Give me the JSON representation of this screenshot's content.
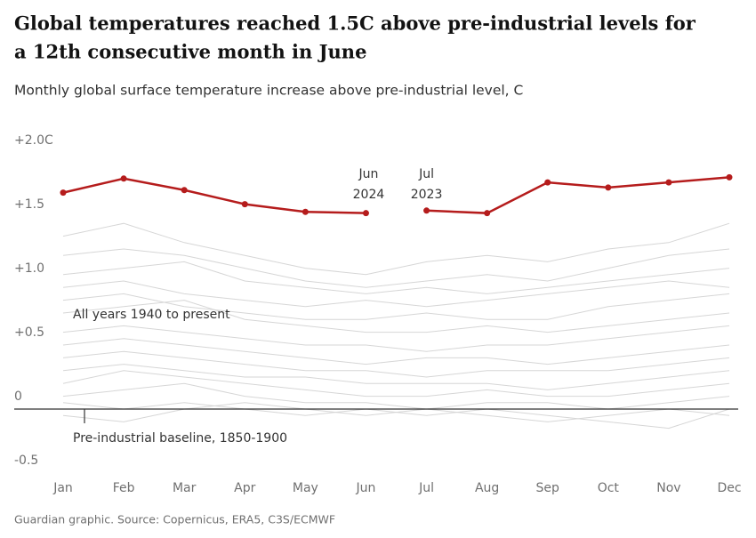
{
  "chart_data": {
    "type": "line",
    "title": [
      "Global temperatures reached 1.5C above pre-industrial levels for",
      "a 12th consecutive month in June"
    ],
    "subtitle": "Monthly global surface temperature increase above pre-industrial level, C",
    "source": "Guardian graphic. Source: Copernicus, ERA5, C3S/ECMWF",
    "categories": [
      "Jan",
      "Feb",
      "Mar",
      "Apr",
      "May",
      "Jun",
      "Jul",
      "Aug",
      "Sep",
      "Oct",
      "Nov",
      "Dec"
    ],
    "ylim": [
      -0.55,
      2.15
    ],
    "yticks": [
      {
        "value": 2.0,
        "label": "+2.0C"
      },
      {
        "value": 1.5,
        "label": "+1.5"
      },
      {
        "value": 1.0,
        "label": "+1.0"
      },
      {
        "value": 0.5,
        "label": "+0.5"
      },
      0,
      -0.5
    ],
    "baseline": 0,
    "series": [
      {
        "color": "#b51c1c",
        "values": [
          1.69,
          1.8,
          1.71,
          1.6,
          1.54,
          1.53,
          null,
          null,
          null,
          null,
          null,
          null
        ]
      },
      {
        "color": "#b51c1c",
        "values": [
          null,
          null,
          null,
          null,
          null,
          null,
          1.55,
          1.53,
          1.77,
          1.73,
          1.77,
          1.81
        ]
      },
      {
        "color": "#d6d6d6",
        "values": [
          1.35,
          1.45,
          1.3,
          1.2,
          1.1,
          1.05,
          1.15,
          1.2,
          1.15,
          1.25,
          1.3,
          1.45
        ]
      },
      {
        "color": "#d6d6d6",
        "values": [
          1.2,
          1.25,
          1.2,
          1.1,
          1.0,
          0.95,
          1.0,
          1.05,
          1.0,
          1.1,
          1.2,
          1.25
        ]
      },
      {
        "color": "#d6d6d6",
        "values": [
          1.05,
          1.1,
          1.15,
          1.0,
          0.95,
          0.9,
          0.95,
          0.9,
          0.95,
          1.0,
          1.05,
          1.1
        ]
      },
      {
        "color": "#d6d6d6",
        "values": [
          0.95,
          1.0,
          0.9,
          0.85,
          0.8,
          0.85,
          0.8,
          0.85,
          0.9,
          0.95,
          1.0,
          0.95
        ]
      },
      {
        "color": "#d6d6d6",
        "values": [
          0.85,
          0.9,
          0.8,
          0.75,
          0.7,
          0.7,
          0.75,
          0.7,
          0.7,
          0.8,
          0.85,
          0.9
        ]
      },
      {
        "color": "#d6d6d6",
        "values": [
          0.75,
          0.8,
          0.85,
          0.7,
          0.65,
          0.6,
          0.6,
          0.65,
          0.6,
          0.65,
          0.7,
          0.75
        ]
      },
      {
        "color": "#d6d6d6",
        "values": [
          0.6,
          0.65,
          0.6,
          0.55,
          0.5,
          0.5,
          0.45,
          0.5,
          0.5,
          0.55,
          0.6,
          0.65
        ]
      },
      {
        "color": "#d6d6d6",
        "values": [
          0.5,
          0.55,
          0.5,
          0.45,
          0.4,
          0.35,
          0.4,
          0.4,
          0.35,
          0.4,
          0.45,
          0.5
        ]
      },
      {
        "color": "#d6d6d6",
        "values": [
          0.4,
          0.45,
          0.4,
          0.35,
          0.3,
          0.3,
          0.25,
          0.3,
          0.3,
          0.3,
          0.35,
          0.4
        ]
      },
      {
        "color": "#d6d6d6",
        "values": [
          0.3,
          0.35,
          0.3,
          0.25,
          0.25,
          0.2,
          0.2,
          0.2,
          0.15,
          0.2,
          0.25,
          0.3
        ]
      },
      {
        "color": "#d6d6d6",
        "values": [
          0.2,
          0.3,
          0.25,
          0.2,
          0.15,
          0.1,
          0.1,
          0.15,
          0.1,
          0.1,
          0.15,
          0.2
        ]
      },
      {
        "color": "#d6d6d6",
        "values": [
          0.1,
          0.15,
          0.2,
          0.1,
          0.05,
          0.05,
          0.0,
          0.05,
          0.05,
          0.0,
          0.05,
          0.1
        ]
      },
      {
        "color": "#d6d6d6",
        "values": [
          0.05,
          0.0,
          0.05,
          0.0,
          -0.05,
          0.0,
          -0.05,
          0.0,
          -0.05,
          -0.1,
          -0.15,
          0.0
        ]
      },
      {
        "color": "#d6d6d6",
        "values": [
          -0.05,
          -0.1,
          0.0,
          0.05,
          0.0,
          -0.05,
          0.0,
          -0.05,
          -0.1,
          -0.05,
          0.0,
          -0.05
        ]
      }
    ],
    "annotations": [
      {
        "lines": [
          "Jun",
          "2024"
        ],
        "at": 5
      },
      {
        "lines": [
          "Jul",
          "2023"
        ],
        "at": 6
      },
      {
        "text": "All years 1940 to present"
      },
      {
        "text": "Pre-industrial baseline, 1850-1900"
      }
    ]
  }
}
